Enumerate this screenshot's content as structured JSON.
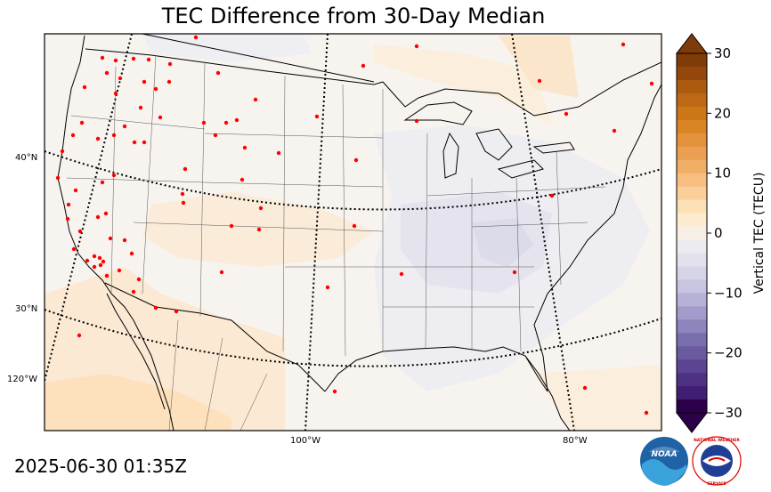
{
  "title": "TEC Difference from 30-Day Median",
  "timestamp": "2025-06-30 01:35Z",
  "latitude_labels": [
    "40°N",
    "30°N"
  ],
  "longitude_labels": [
    "120°W",
    "100°W",
    "80°W"
  ],
  "colorbar": {
    "label": "Vertical TEC (TECU)",
    "ticks": [
      "30",
      "20",
      "10",
      "0",
      "−10",
      "−20",
      "−30"
    ],
    "range": [
      -30,
      30
    ],
    "colors_top_to_bottom": [
      "#7f3b08",
      "#95470b",
      "#ab5a0f",
      "#bd6814",
      "#cc7717",
      "#da8523",
      "#e3913a",
      "#ea9f52",
      "#f1ae66",
      "#f7be7f",
      "#fbcf99",
      "#fde0b6",
      "#fdebd0",
      "#f5efe6",
      "#ecebf1",
      "#e3e1ee",
      "#d6d4e8",
      "#c8c5e1",
      "#b6b1d7",
      "#a29bcb",
      "#8d85bc",
      "#7a6fae",
      "#6a5ba0",
      "#5b4592",
      "#4d3183",
      "#401e74",
      "#2d004b"
    ]
  },
  "stations_note_color": "#ff0000",
  "logos": [
    "NOAA",
    "NATIONAL WEATHER SERVICE"
  ]
}
